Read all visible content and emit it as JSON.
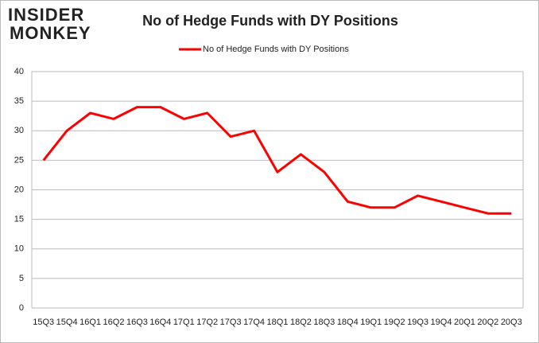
{
  "logo": {
    "line1": "INSIDER",
    "line2": "MONKEY"
  },
  "chart_data": {
    "type": "line",
    "title": "No of Hedge Funds with DY Positions",
    "categories": [
      "15Q3",
      "15Q4",
      "16Q1",
      "16Q2",
      "16Q3",
      "16Q4",
      "17Q1",
      "17Q2",
      "17Q3",
      "17Q4",
      "18Q1",
      "18Q2",
      "18Q3",
      "18Q4",
      "19Q1",
      "19Q2",
      "19Q3",
      "19Q4",
      "20Q1",
      "20Q2",
      "20Q3"
    ],
    "series": [
      {
        "name": "No of Hedge Funds with DY Positions",
        "color": "#ff0000",
        "values": [
          25,
          30,
          33,
          32,
          34,
          34,
          32,
          33,
          29,
          30,
          23,
          26,
          23,
          18,
          17,
          17,
          19,
          18,
          17,
          16,
          16
        ]
      }
    ],
    "ylim": [
      0,
      40
    ],
    "yticks": [
      0,
      5,
      10,
      15,
      20,
      25,
      30,
      35,
      40
    ],
    "grid": true,
    "legend": "top"
  }
}
